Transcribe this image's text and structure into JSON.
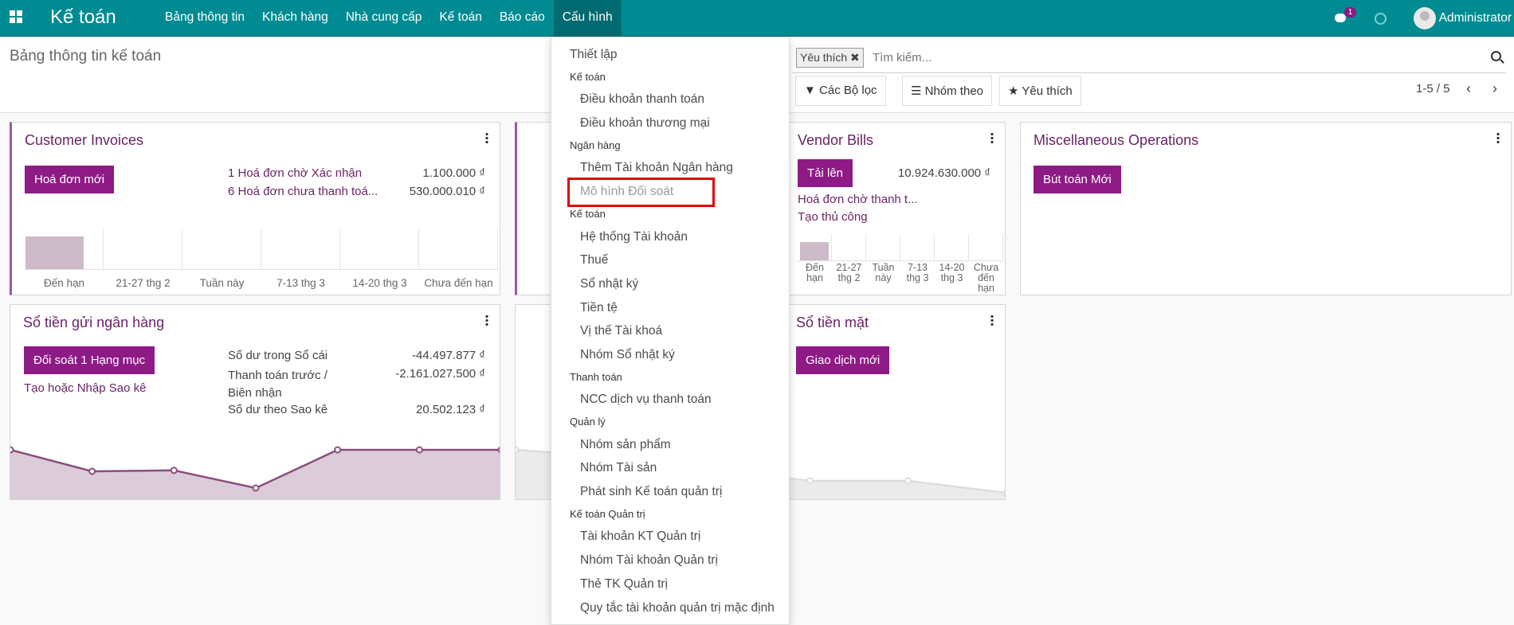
{
  "navbar": {
    "app_name": "Kế toán",
    "menu": [
      "Bảng thông tin",
      "Khách hàng",
      "Nhà cung cấp",
      "Kế toán",
      "Báo cáo",
      "Cấu hình"
    ],
    "active_menu": "Cấu hình",
    "chat_badge": "1",
    "user": "Administrator",
    "color": "#008b92"
  },
  "control_panel": {
    "title": "Bảng thông tin kế toán",
    "facet": "Yêu thích",
    "search_placeholder": "Tìm kiếm...",
    "filters_label": "Các Bộ lọc",
    "group_by_label": "Nhóm theo",
    "favorites_label": "Yêu thích",
    "pager": "1-5 / 5"
  },
  "cards": {
    "customer_invoices": {
      "title": "Customer Invoices",
      "button": "Hoá đơn mới",
      "rows": [
        {
          "label": "1 Hoá đơn chờ Xác nhận",
          "amount": "1.100.000 ₫"
        },
        {
          "label": "6 Hoá đơn chưa thanh toá...",
          "amount": "530.000.010 ₫"
        }
      ],
      "chart_labels": [
        "Đến hạn",
        "21-27 thg 2",
        "Tuần này",
        "7-13 thg 3",
        "14-20 thg 3",
        "Chưa đến hạn"
      ],
      "chart_levels": [
        0.8,
        0,
        0,
        0,
        0,
        0
      ]
    },
    "vendor_bills": {
      "title": "Vendor Bills",
      "button": "Tải lên",
      "link": "Tạo thủ công",
      "row": {
        "label": "Hoá đơn chờ thanh t...",
        "amount": "10.924.630.000 ₫"
      },
      "chart_labels": [
        "Đến hạn",
        "21-27 thg 2",
        "Tuần này",
        "7-13 thg 3",
        "14-20 thg 3",
        "Chưa đến hạn"
      ],
      "chart_levels": [
        0.7,
        0,
        0,
        0,
        0,
        0
      ]
    },
    "misc": {
      "title": "Miscellaneous Operations",
      "button": "Bút toán Mới"
    },
    "bank": {
      "title": "Sổ tiền gửi ngân hàng",
      "button": "Đối soát 1 Hạng mục",
      "link": "Tạo hoặc Nhập Sao kê",
      "rows": [
        {
          "label": "Số dư trong Sổ cái",
          "amount": "-44.497.877 ₫"
        },
        {
          "label": "Thanh toán trước / Biên nhận",
          "amount": "-2.161.027.500 ₫"
        },
        {
          "label": "Số dư theo Sao kê",
          "amount": "20.502.123 ₫"
        }
      ],
      "line_levels": [
        1,
        0.55,
        0.57,
        0.2,
        1,
        1,
        1
      ]
    },
    "cash": {
      "title": "Sổ tiền mặt",
      "button": "Giao dịch mới",
      "line_levels": [
        1,
        0.85,
        0.6,
        0.35,
        0.35,
        0.1
      ]
    }
  },
  "dropdown": [
    {
      "type": "top",
      "label": "Thiết lập"
    },
    {
      "type": "header",
      "label": "Kế toán"
    },
    {
      "type": "item",
      "label": "Điều khoản thanh toán"
    },
    {
      "type": "item",
      "label": "Điều khoản thương mại"
    },
    {
      "type": "header",
      "label": "Ngân hàng"
    },
    {
      "type": "item",
      "label": "Thêm Tài khoản Ngân hàng"
    },
    {
      "type": "disabled",
      "label": "Mô hình Đối soát"
    },
    {
      "type": "header",
      "label": "Kế toán"
    },
    {
      "type": "item",
      "label": "Hệ thống Tài khoản"
    },
    {
      "type": "item",
      "label": "Thuế"
    },
    {
      "type": "item",
      "label": "Sổ nhật ký"
    },
    {
      "type": "item",
      "label": "Tiền tệ"
    },
    {
      "type": "item",
      "label": "Vị thế Tài khoá"
    },
    {
      "type": "item",
      "label": "Nhóm Sổ nhật ký"
    },
    {
      "type": "header",
      "label": "Thanh toán"
    },
    {
      "type": "item",
      "label": "NCC dịch vụ thanh toán"
    },
    {
      "type": "header",
      "label": "Quản lý"
    },
    {
      "type": "item",
      "label": "Nhóm sản phẩm"
    },
    {
      "type": "item",
      "label": "Nhóm Tài sản"
    },
    {
      "type": "item",
      "label": "Phát sinh Kế toán quản trị"
    },
    {
      "type": "header",
      "label": "Kế toán Quản trị"
    },
    {
      "type": "item",
      "label": "Tài khoản KT Quản trị"
    },
    {
      "type": "item",
      "label": "Nhóm Tài khoản Quản trị"
    },
    {
      "type": "item",
      "label": "Thẻ TK Quản trị"
    },
    {
      "type": "item",
      "label": "Quy tắc tài khoản quản trị mặc định"
    }
  ]
}
